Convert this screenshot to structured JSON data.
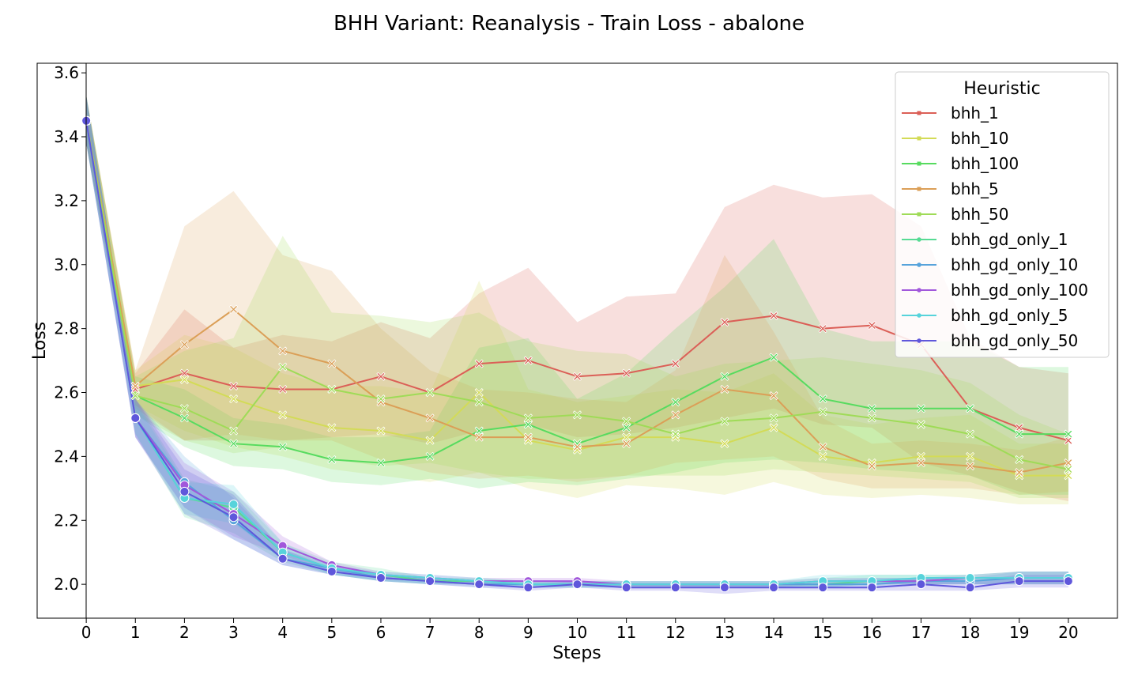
{
  "chart_data": {
    "type": "line",
    "title": "BHH Variant: Reanalysis - Train Loss - abalone",
    "xlabel": "Steps",
    "ylabel": "Loss",
    "xlim": [
      -1,
      21
    ],
    "ylim": [
      1.894,
      3.63
    ],
    "xticks": [
      0,
      1,
      2,
      3,
      4,
      5,
      6,
      7,
      8,
      9,
      10,
      11,
      12,
      13,
      14,
      15,
      16,
      17,
      18,
      19,
      20
    ],
    "yticks": [
      2.0,
      2.2,
      2.4,
      2.6,
      2.8,
      3.0,
      3.2,
      3.4,
      3.6
    ],
    "grid": false,
    "legend": {
      "title": "Heuristic",
      "placement": "top-right"
    },
    "x": [
      0,
      1,
      2,
      3,
      4,
      5,
      6,
      7,
      8,
      9,
      10,
      11,
      12,
      13,
      14,
      15,
      16,
      17,
      18,
      19,
      20
    ],
    "series": [
      {
        "name": "bhh_1",
        "color": "#db5f57",
        "marker": "x",
        "values": [
          3.45,
          2.61,
          2.66,
          2.62,
          2.61,
          2.61,
          2.65,
          2.6,
          2.69,
          2.7,
          2.65,
          2.66,
          2.69,
          2.82,
          2.84,
          2.8,
          2.81,
          2.75,
          2.55,
          2.49,
          2.45
        ],
        "lower": [
          3.38,
          2.55,
          2.45,
          2.45,
          2.45,
          2.46,
          2.47,
          2.44,
          2.48,
          2.5,
          2.46,
          2.47,
          2.49,
          2.52,
          2.55,
          2.5,
          2.49,
          2.38,
          2.34,
          2.29,
          2.26
        ],
        "upper": [
          3.53,
          2.66,
          2.86,
          2.74,
          2.78,
          2.76,
          2.82,
          2.77,
          2.91,
          2.99,
          2.82,
          2.9,
          2.91,
          3.18,
          3.25,
          3.21,
          3.22,
          3.12,
          2.77,
          2.68,
          2.66
        ]
      },
      {
        "name": "bhh_10",
        "color": "#d3db57",
        "marker": "x",
        "values": [
          3.45,
          2.62,
          2.64,
          2.58,
          2.53,
          2.49,
          2.48,
          2.45,
          2.6,
          2.45,
          2.42,
          2.46,
          2.46,
          2.44,
          2.49,
          2.4,
          2.38,
          2.4,
          2.4,
          2.34,
          2.34
        ],
        "lower": [
          3.38,
          2.56,
          2.48,
          2.43,
          2.4,
          2.36,
          2.34,
          2.32,
          2.35,
          2.3,
          2.27,
          2.31,
          2.3,
          2.28,
          2.32,
          2.28,
          2.27,
          2.28,
          2.27,
          2.25,
          2.25
        ],
        "upper": [
          3.53,
          2.67,
          2.78,
          2.74,
          2.66,
          2.62,
          2.62,
          2.6,
          2.95,
          2.61,
          2.57,
          2.59,
          2.61,
          2.6,
          2.66,
          2.53,
          2.5,
          2.52,
          2.53,
          2.44,
          2.44
        ]
      },
      {
        "name": "bhh_100",
        "color": "#57db5f",
        "marker": "x",
        "values": [
          3.45,
          2.59,
          2.52,
          2.44,
          2.43,
          2.39,
          2.38,
          2.4,
          2.48,
          2.5,
          2.44,
          2.49,
          2.57,
          2.65,
          2.71,
          2.58,
          2.55,
          2.55,
          2.55,
          2.47,
          2.47
        ],
        "lower": [
          3.38,
          2.53,
          2.43,
          2.37,
          2.36,
          2.32,
          2.31,
          2.33,
          2.3,
          2.32,
          2.31,
          2.33,
          2.35,
          2.38,
          2.39,
          2.38,
          2.36,
          2.35,
          2.34,
          2.28,
          2.28
        ],
        "upper": [
          3.53,
          2.65,
          2.61,
          2.52,
          2.5,
          2.46,
          2.46,
          2.48,
          2.74,
          2.77,
          2.58,
          2.66,
          2.8,
          2.93,
          3.08,
          2.8,
          2.76,
          2.76,
          2.76,
          2.68,
          2.68
        ]
      },
      {
        "name": "bhh_5",
        "color": "#db9f57",
        "marker": "x",
        "values": [
          3.45,
          2.62,
          2.75,
          2.86,
          2.73,
          2.69,
          2.57,
          2.52,
          2.46,
          2.46,
          2.43,
          2.44,
          2.53,
          2.61,
          2.59,
          2.43,
          2.37,
          2.38,
          2.37,
          2.35,
          2.38
        ],
        "lower": [
          3.38,
          2.56,
          2.45,
          2.47,
          2.45,
          2.45,
          2.39,
          2.35,
          2.33,
          2.34,
          2.32,
          2.34,
          2.38,
          2.39,
          2.4,
          2.33,
          2.3,
          2.3,
          2.3,
          2.28,
          2.29
        ],
        "upper": [
          3.53,
          2.67,
          3.12,
          3.23,
          3.03,
          2.98,
          2.8,
          2.67,
          2.61,
          2.6,
          2.58,
          2.57,
          2.67,
          3.03,
          2.79,
          2.52,
          2.44,
          2.45,
          2.44,
          2.42,
          2.46
        ]
      },
      {
        "name": "bhh_50",
        "color": "#9fdb57",
        "marker": "x",
        "values": [
          3.45,
          2.59,
          2.55,
          2.48,
          2.68,
          2.61,
          2.58,
          2.6,
          2.57,
          2.52,
          2.53,
          2.51,
          2.47,
          2.51,
          2.52,
          2.54,
          2.52,
          2.5,
          2.47,
          2.39,
          2.36
        ],
        "lower": [
          3.38,
          2.53,
          2.45,
          2.41,
          2.43,
          2.39,
          2.37,
          2.38,
          2.35,
          2.33,
          2.33,
          2.34,
          2.34,
          2.34,
          2.36,
          2.35,
          2.34,
          2.33,
          2.32,
          2.27,
          2.27
        ],
        "upper": [
          3.53,
          2.65,
          2.73,
          2.77,
          3.09,
          2.85,
          2.84,
          2.82,
          2.85,
          2.76,
          2.73,
          2.72,
          2.65,
          2.69,
          2.7,
          2.71,
          2.69,
          2.67,
          2.63,
          2.53,
          2.47
        ]
      },
      {
        "name": "bhh_gd_only_1",
        "color": "#57db94",
        "marker": "o",
        "values": [
          3.45,
          2.52,
          2.27,
          2.24,
          2.1,
          2.05,
          2.03,
          2.01,
          2.01,
          2.0,
          2.0,
          2.0,
          2.0,
          2.0,
          2.0,
          2.0,
          2.01,
          2.01,
          2.02,
          2.02,
          2.02
        ],
        "lower": [
          3.38,
          2.47,
          2.21,
          2.16,
          2.07,
          2.03,
          2.01,
          2.0,
          2.0,
          1.99,
          1.99,
          1.99,
          1.99,
          1.99,
          1.99,
          1.99,
          2.0,
          2.0,
          2.0,
          2.0,
          2.0
        ],
        "upper": [
          3.53,
          2.58,
          2.33,
          2.29,
          2.13,
          2.07,
          2.05,
          2.02,
          2.02,
          2.01,
          2.01,
          2.01,
          2.01,
          2.01,
          2.01,
          2.02,
          2.03,
          2.03,
          2.03,
          2.04,
          2.04
        ]
      },
      {
        "name": "bhh_gd_only_10",
        "color": "#57a3db",
        "marker": "o",
        "values": [
          3.45,
          2.52,
          2.32,
          2.2,
          2.08,
          2.05,
          2.02,
          2.01,
          2.0,
          2.0,
          2.0,
          2.0,
          2.0,
          2.0,
          2.0,
          2.0,
          2.0,
          2.01,
          2.01,
          2.02,
          2.02
        ],
        "lower": [
          3.38,
          2.46,
          2.24,
          2.14,
          2.06,
          2.03,
          2.01,
          2.0,
          1.99,
          1.99,
          1.99,
          1.99,
          1.99,
          1.99,
          1.99,
          1.99,
          1.99,
          2.0,
          2.0,
          2.0,
          2.0
        ],
        "upper": [
          3.53,
          2.58,
          2.4,
          2.27,
          2.11,
          2.06,
          2.03,
          2.02,
          2.01,
          2.01,
          2.01,
          2.01,
          2.01,
          2.01,
          2.01,
          2.01,
          2.02,
          2.02,
          2.02,
          2.04,
          2.04
        ]
      },
      {
        "name": "bhh_gd_only_100",
        "color": "#a157db",
        "marker": "o",
        "values": [
          3.45,
          2.52,
          2.31,
          2.22,
          2.12,
          2.06,
          2.03,
          2.02,
          2.01,
          2.01,
          2.01,
          2.0,
          2.0,
          2.0,
          2.0,
          2.01,
          2.01,
          2.01,
          2.02,
          2.02,
          2.02
        ],
        "lower": [
          3.38,
          2.46,
          2.24,
          2.15,
          2.09,
          2.04,
          2.02,
          2.01,
          2.0,
          2.0,
          2.0,
          1.99,
          1.99,
          1.99,
          1.99,
          2.0,
          2.0,
          2.0,
          2.0,
          2.0,
          2.0
        ],
        "upper": [
          3.53,
          2.58,
          2.38,
          2.29,
          2.15,
          2.07,
          2.04,
          2.03,
          2.02,
          2.02,
          2.02,
          2.01,
          2.01,
          2.01,
          2.01,
          2.02,
          2.02,
          2.02,
          2.03,
          2.04,
          2.04
        ]
      },
      {
        "name": "bhh_gd_only_5",
        "color": "#57d3db",
        "marker": "o",
        "values": [
          3.45,
          2.52,
          2.27,
          2.25,
          2.1,
          2.05,
          2.03,
          2.02,
          2.01,
          2.0,
          2.0,
          2.0,
          2.0,
          2.0,
          2.0,
          2.01,
          2.01,
          2.02,
          2.02,
          2.02,
          2.02
        ],
        "lower": [
          3.38,
          2.47,
          2.22,
          2.19,
          2.08,
          2.03,
          2.01,
          2.0,
          2.0,
          1.99,
          1.99,
          1.99,
          1.99,
          1.99,
          1.99,
          1.99,
          2.0,
          2.0,
          2.0,
          2.0,
          2.0
        ],
        "upper": [
          3.53,
          2.57,
          2.32,
          2.31,
          2.13,
          2.06,
          2.04,
          2.03,
          2.02,
          2.01,
          2.01,
          2.01,
          2.01,
          2.01,
          2.01,
          2.03,
          2.03,
          2.03,
          2.03,
          2.04,
          2.04
        ]
      },
      {
        "name": "bhh_gd_only_50",
        "color": "#5f57db",
        "marker": "o",
        "values": [
          3.45,
          2.52,
          2.29,
          2.21,
          2.08,
          2.04,
          2.02,
          2.01,
          2.0,
          1.99,
          2.0,
          1.99,
          1.99,
          1.99,
          1.99,
          1.99,
          1.99,
          2.0,
          1.99,
          2.01,
          2.01
        ],
        "lower": [
          3.38,
          2.46,
          2.22,
          2.14,
          2.06,
          2.03,
          2.01,
          2.0,
          1.99,
          1.98,
          1.99,
          1.98,
          1.98,
          1.97,
          1.98,
          1.98,
          1.98,
          1.98,
          1.98,
          1.99,
          1.99
        ],
        "upper": [
          3.53,
          2.58,
          2.36,
          2.28,
          2.11,
          2.05,
          2.03,
          2.02,
          2.01,
          2.0,
          2.01,
          2.0,
          2.0,
          2.0,
          2.0,
          2.0,
          2.0,
          2.02,
          2.01,
          2.03,
          2.03
        ]
      }
    ]
  }
}
